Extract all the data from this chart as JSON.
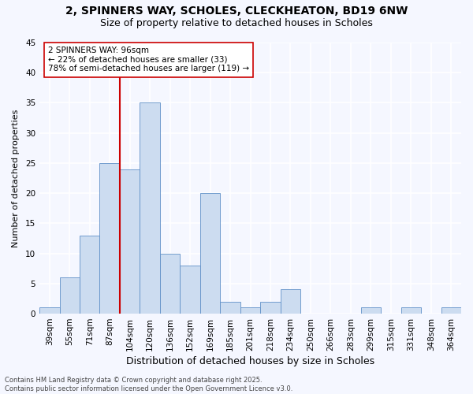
{
  "title_line1": "2, SPINNERS WAY, SCHOLES, CLECKHEATON, BD19 6NW",
  "title_line2": "Size of property relative to detached houses in Scholes",
  "xlabel": "Distribution of detached houses by size in Scholes",
  "ylabel": "Number of detached properties",
  "categories": [
    "39sqm",
    "55sqm",
    "71sqm",
    "87sqm",
    "104sqm",
    "120sqm",
    "136sqm",
    "152sqm",
    "169sqm",
    "185sqm",
    "201sqm",
    "218sqm",
    "234sqm",
    "250sqm",
    "266sqm",
    "283sqm",
    "299sqm",
    "315sqm",
    "331sqm",
    "348sqm",
    "364sqm"
  ],
  "values": [
    1,
    6,
    13,
    25,
    24,
    35,
    10,
    8,
    20,
    2,
    1,
    2,
    4,
    0,
    0,
    0,
    1,
    0,
    1,
    0,
    1
  ],
  "bar_color": "#ccdcf0",
  "bar_edge_color": "#6090c8",
  "background_color": "#f5f7ff",
  "plot_bg_color": "#f5f7ff",
  "grid_color": "#ffffff",
  "vline_color": "#cc0000",
  "vline_x_idx": 3.5,
  "annotation_text": "2 SPINNERS WAY: 96sqm\n← 22% of detached houses are smaller (33)\n78% of semi-detached houses are larger (119) →",
  "annotation_box_facecolor": "#ffffff",
  "annotation_box_edgecolor": "#cc0000",
  "ylim": [
    0,
    45
  ],
  "yticks": [
    0,
    5,
    10,
    15,
    20,
    25,
    30,
    35,
    40,
    45
  ],
  "footer_text": "Contains HM Land Registry data © Crown copyright and database right 2025.\nContains public sector information licensed under the Open Government Licence v3.0.",
  "title_fontsize": 10,
  "subtitle_fontsize": 9,
  "tick_fontsize": 7.5,
  "xlabel_fontsize": 9,
  "ylabel_fontsize": 8,
  "annotation_fontsize": 7.5,
  "footer_fontsize": 6
}
